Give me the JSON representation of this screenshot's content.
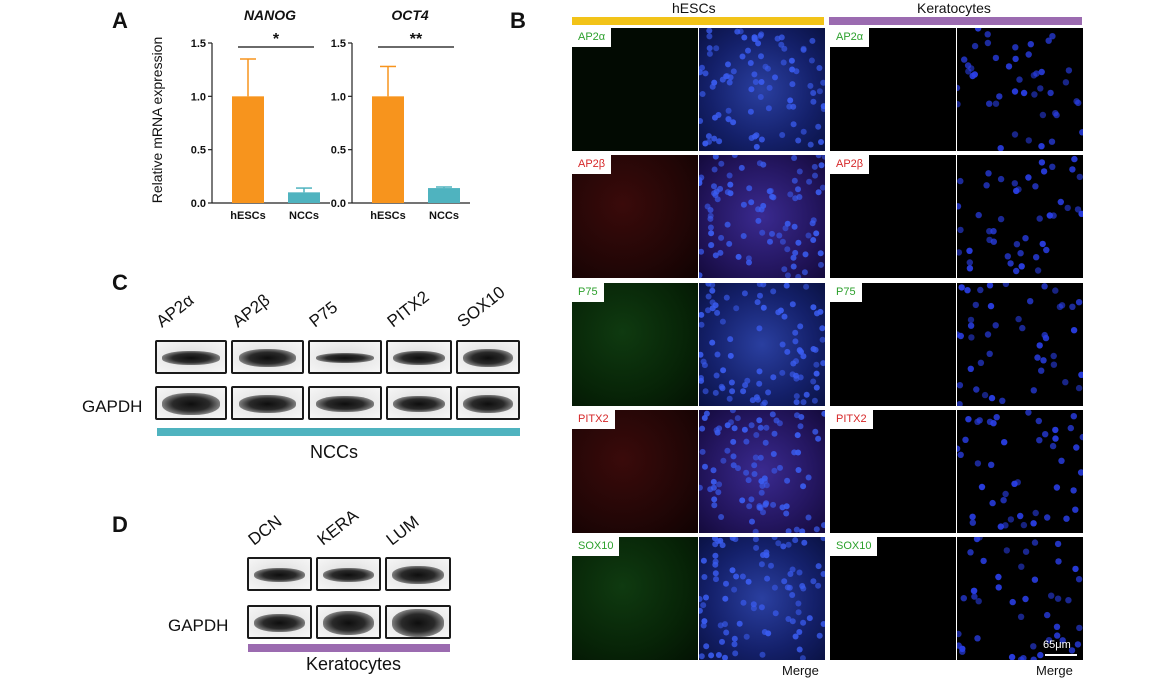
{
  "panels": {
    "A": "A",
    "B": "B",
    "C": "C",
    "D": "D"
  },
  "chart_data": [
    {
      "type": "bar",
      "title": "NANOG",
      "ylabel": "Relative mRNA expression",
      "categories": [
        "hESCs",
        "NCCs"
      ],
      "values": [
        1.0,
        0.1
      ],
      "errors": [
        0.35,
        0.04
      ],
      "ylim": [
        0,
        1.5
      ],
      "yticks": [
        "0.0",
        "0.5",
        "1.0",
        "1.5"
      ],
      "significance": "*",
      "colors": [
        "#f7941d",
        "#4fb3bf"
      ]
    },
    {
      "type": "bar",
      "title": "OCT4",
      "ylabel": "",
      "categories": [
        "hESCs",
        "NCCs"
      ],
      "values": [
        1.0,
        0.14
      ],
      "errors": [
        0.28,
        0.01
      ],
      "ylim": [
        0,
        1.5
      ],
      "yticks": [
        "0.0",
        "0.5",
        "1.0",
        "1.5"
      ],
      "significance": "**",
      "colors": [
        "#f7941d",
        "#4fb3bf"
      ]
    }
  ],
  "western_c": {
    "markers": [
      "AP2α",
      "AP2β",
      "P75",
      "PITX2",
      "SOX10"
    ],
    "loading_label": "GAPDH",
    "group_label": "NCCs",
    "group_color": "#4fb3bf"
  },
  "western_d": {
    "markers": [
      "DCN",
      "KERA",
      "LUM"
    ],
    "loading_label": "GAPDH",
    "group_label": "Keratocytes",
    "group_color": "#9b6bb0"
  },
  "immuno": {
    "groups": [
      {
        "name": "hESCs",
        "color": "#f2c318"
      },
      {
        "name": "Keratocytes",
        "color": "#9b6bb0"
      }
    ],
    "rows": [
      {
        "marker": "AP2α",
        "tag_color": "#2ca02c"
      },
      {
        "marker": "AP2β",
        "tag_color": "#d62728"
      },
      {
        "marker": "P75",
        "tag_color": "#2ca02c"
      },
      {
        "marker": "PITX2",
        "tag_color": "#d62728"
      },
      {
        "marker": "SOX10",
        "tag_color": "#2ca02c"
      }
    ],
    "merge_label": "Merge",
    "scale_label": "65μm"
  }
}
